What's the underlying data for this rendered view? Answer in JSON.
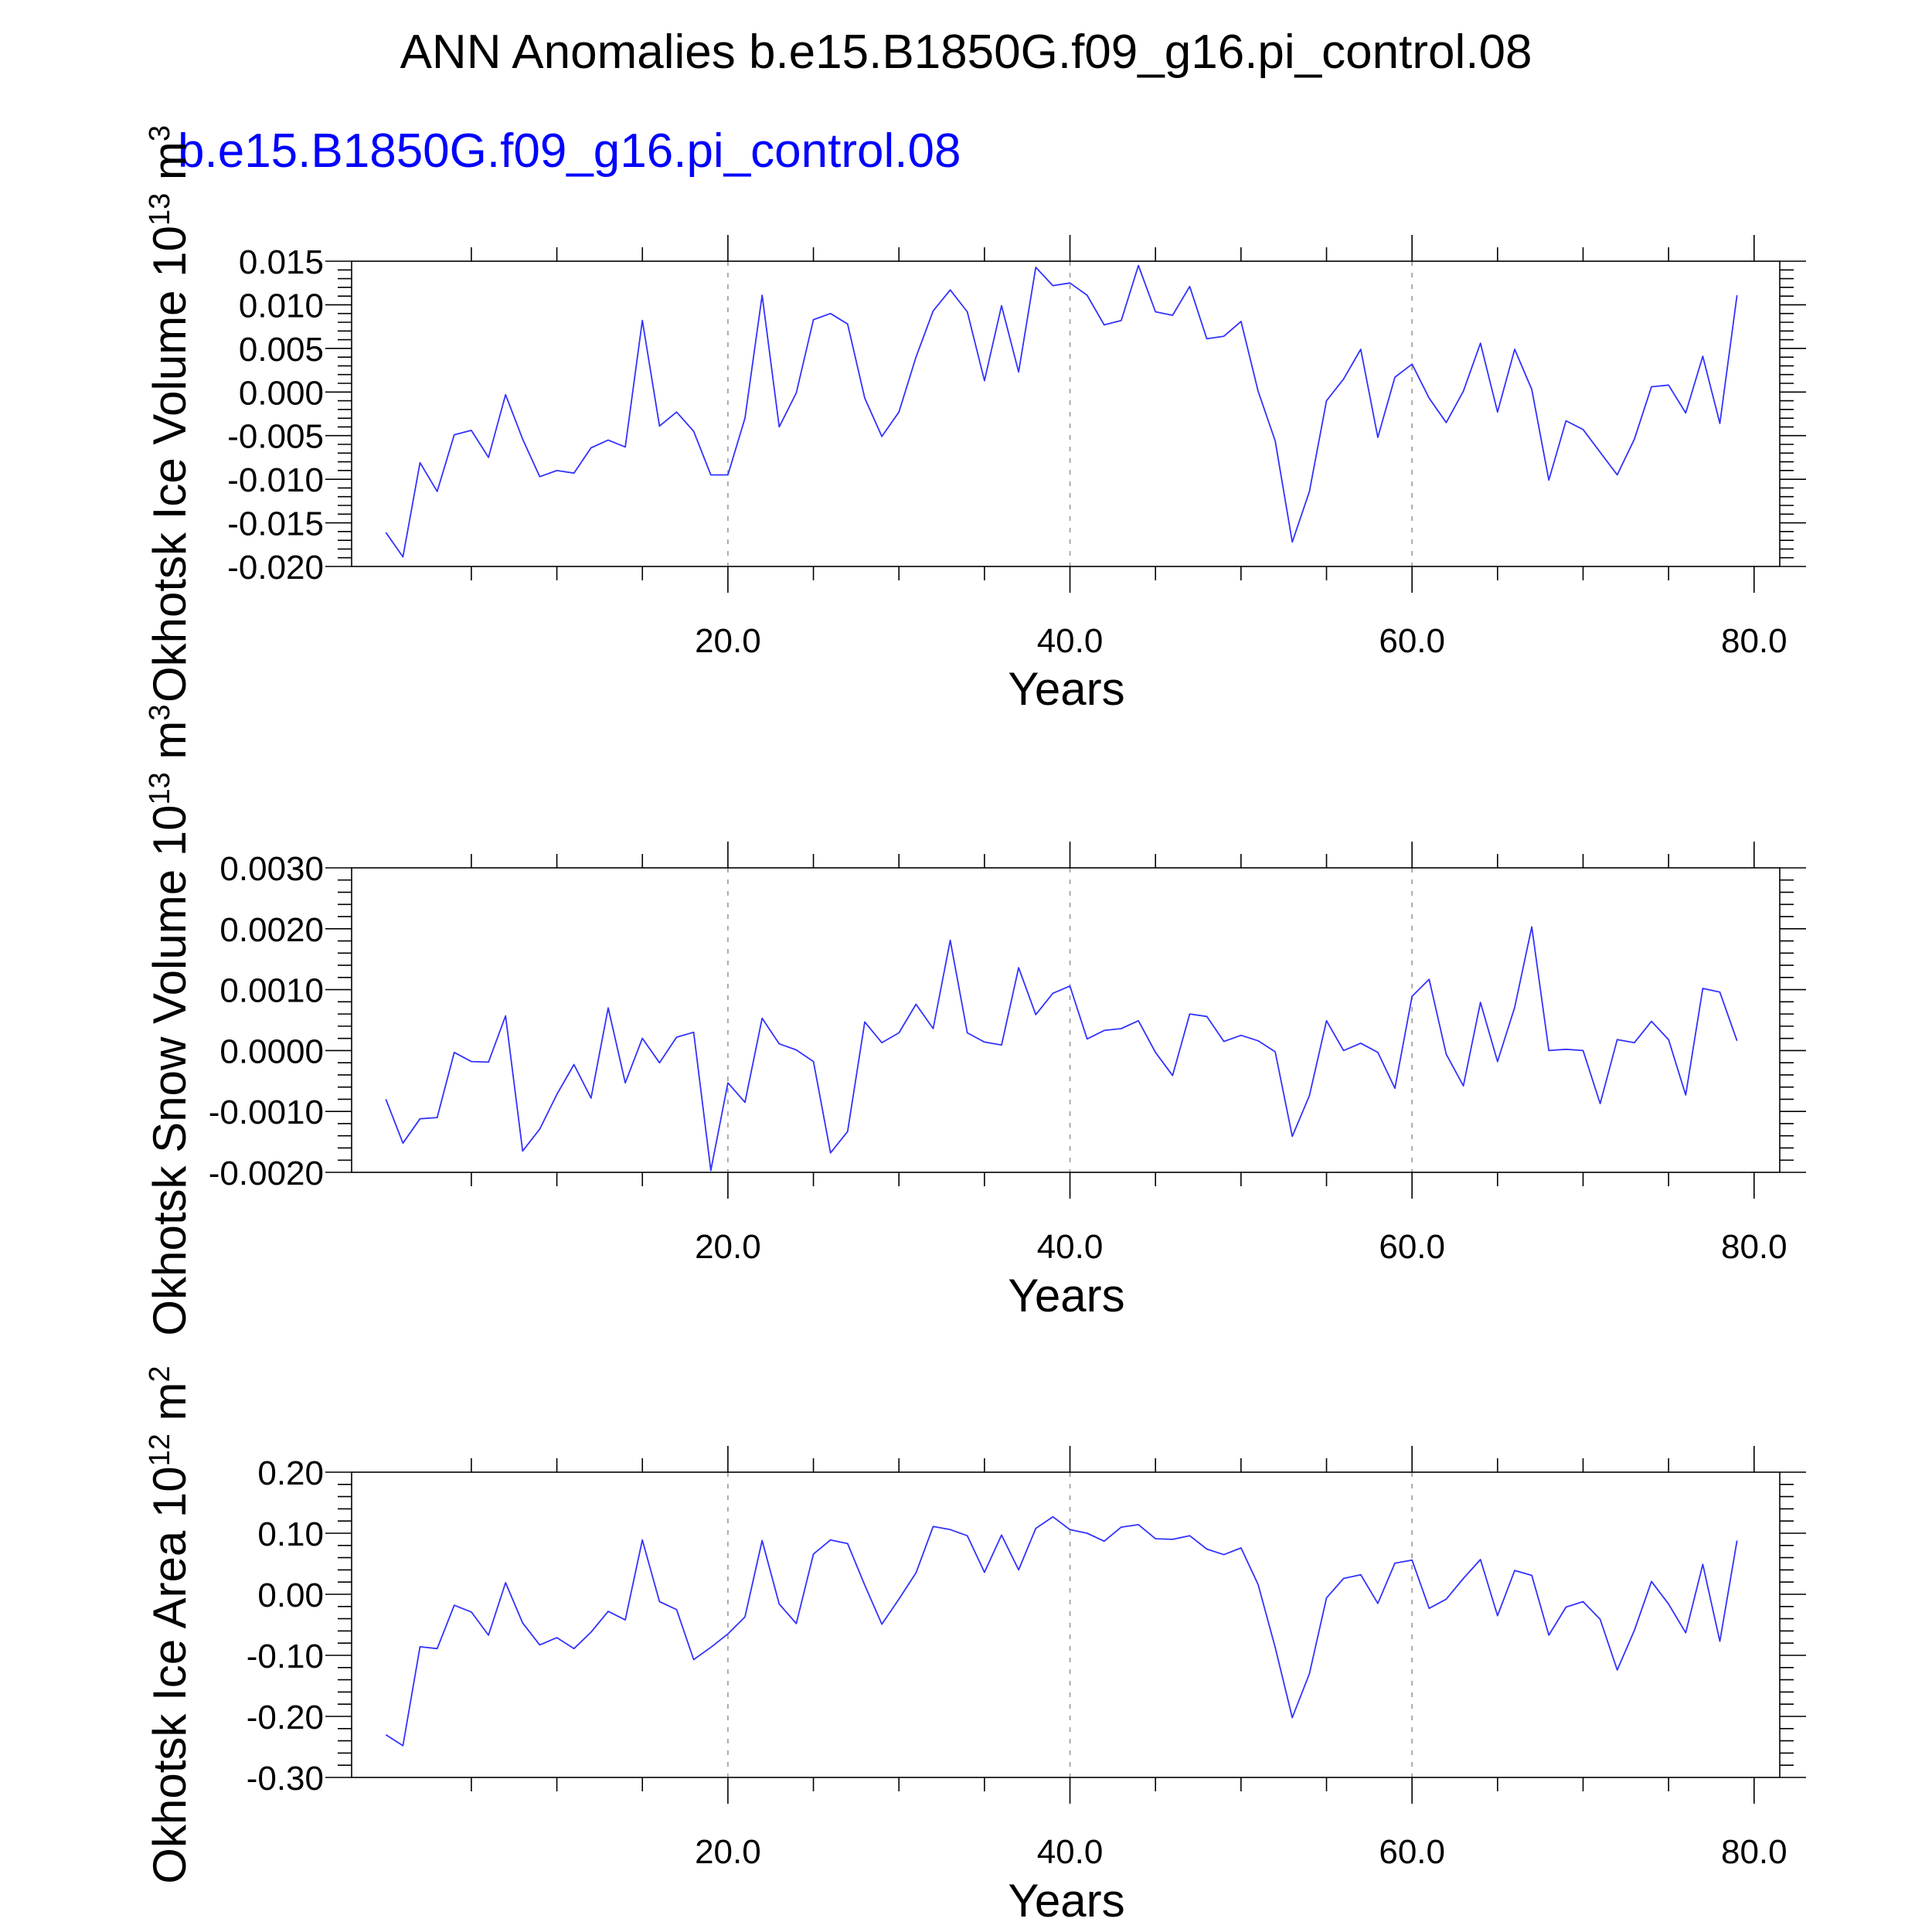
{
  "title": "ANN Anomalies b.e15.B1850G.f09_g16.pi_control.08",
  "case_label": "b.e15.B1850G.f09_g16.pi_control.08",
  "colors": {
    "series": "#3232ff",
    "case_label": "#0000ff",
    "frame": "#000000",
    "grid": "#9a9a9a"
  },
  "chart_data": [
    {
      "type": "line",
      "title": "",
      "ylabel": "Okhotsk Ice Volume 10",
      "ylabel_sup": "13",
      "ylabel_unit": " m",
      "ylabel_unit_sup": "3",
      "xlabel": "Years",
      "xlim": [
        -2,
        81.5
      ],
      "ylim": [
        -0.02,
        0.015
      ],
      "xticks": [
        20,
        40,
        60,
        80
      ],
      "xtick_labels": [
        "20.0",
        "40.0",
        "60.0",
        "80.0"
      ],
      "yticks": [
        -0.02,
        -0.015,
        -0.01,
        -0.005,
        0,
        0.005,
        0.01,
        0.015
      ],
      "ytick_labels": [
        "-0.020",
        "-0.015",
        "-0.010",
        "-0.005",
        "0.000",
        "0.005",
        "0.010",
        "0.015"
      ],
      "grid": "dashed vertical at 20, 40, 60",
      "x_start": 0,
      "x_step": 1,
      "values": [
        -0.0161,
        -0.0189,
        -0.0081,
        -0.0114,
        -0.0049,
        -0.0044,
        -0.0075,
        -0.0003,
        -0.0054,
        -0.0097,
        -0.009,
        -0.0093,
        -0.0064,
        -0.0055,
        -0.0063,
        0.0082,
        -0.0039,
        -0.0023,
        -0.0045,
        -0.0095,
        -0.0095,
        -0.003,
        0.0111,
        -0.004,
        -0.0001,
        0.0083,
        0.009,
        0.0078,
        -0.0007,
        -0.0051,
        -0.0023,
        0.004,
        0.0093,
        0.0117,
        0.0092,
        0.0013,
        0.0099,
        0.0023,
        0.0143,
        0.0122,
        0.0125,
        0.0111,
        0.0077,
        0.0082,
        0.0145,
        0.0092,
        0.0088,
        0.0121,
        0.0061,
        0.0064,
        0.0081,
        0.0001,
        -0.0056,
        -0.0172,
        -0.0114,
        -0.001,
        0.0015,
        0.0049,
        -0.0052,
        0.0017,
        0.0032,
        -0.0007,
        -0.0035,
        0.0001,
        0.0056,
        -0.0023,
        0.0049,
        0.0003,
        -0.0101,
        -0.0033,
        -0.0043,
        -0.0069,
        -0.0095,
        -0.0054,
        0.0006,
        0.0008,
        -0.0024,
        0.0041,
        -0.0036,
        0.0111
      ]
    },
    {
      "type": "line",
      "title": "",
      "ylabel": "Okhotsk Snow Volume 10",
      "ylabel_sup": "13",
      "ylabel_unit": " m",
      "ylabel_unit_sup": "3",
      "xlabel": "Years",
      "xlim": [
        -2,
        81.5
      ],
      "ylim": [
        -0.002,
        0.003
      ],
      "xticks": [
        20,
        40,
        60,
        80
      ],
      "xtick_labels": [
        "20.0",
        "40.0",
        "60.0",
        "80.0"
      ],
      "yticks": [
        -0.002,
        -0.001,
        0,
        0.001,
        0.002,
        0.003
      ],
      "ytick_labels": [
        "-0.0020",
        "-0.0010",
        "0.0000",
        "0.0010",
        "0.0020",
        "0.0030"
      ],
      "grid": "dashed vertical at 20, 40, 60",
      "x_start": 0,
      "x_step": 1,
      "values": [
        -0.0008,
        -0.00152,
        -0.00112,
        -0.0011,
        -3e-05,
        -0.00018,
        -0.00019,
        0.00057,
        -0.00165,
        -0.00129,
        -0.00072,
        -0.00023,
        -0.00078,
        0.0007,
        -0.00053,
        0.0002,
        -0.0002,
        0.00022,
        0.0003,
        -0.00197,
        -0.00053,
        -0.00085,
        0.00053,
        0.00011,
        1e-05,
        -0.00018,
        -0.00168,
        -0.00133,
        0.00047,
        0.00013,
        0.00029,
        0.00076,
        0.00036,
        0.00181,
        0.00029,
        0.00014,
        9e-05,
        0.00136,
        0.00059,
        0.00094,
        0.00106,
        0.00019,
        0.00033,
        0.00036,
        0.00049,
        -3e-05,
        -0.00041,
        0.0006,
        0.00056,
        0.00015,
        0.00025,
        0.00016,
        -2e-05,
        -0.00141,
        -0.00074,
        0.00049,
        0,
        0.00012,
        -3e-05,
        -0.00062,
        0.00089,
        0.00117,
        -6e-05,
        -0.00058,
        0.00079,
        -0.00018,
        0.00071,
        0.00203,
        0,
        2e-05,
        0,
        -0.00087,
        0.00018,
        0.00013,
        0.00048,
        0.00018,
        -0.00073,
        0.00102,
        0.00096,
        0.00016
      ]
    },
    {
      "type": "line",
      "title": "",
      "ylabel": "Okhotsk Ice Area 10",
      "ylabel_sup": "12",
      "ylabel_unit": " m",
      "ylabel_unit_sup": "2",
      "xlabel": "Years",
      "xlim": [
        -2,
        81.5
      ],
      "ylim": [
        -0.3,
        0.2
      ],
      "xticks": [
        20,
        40,
        60,
        80
      ],
      "xtick_labels": [
        "20.0",
        "40.0",
        "60.0",
        "80.0"
      ],
      "yticks": [
        -0.3,
        -0.2,
        -0.1,
        0,
        0.1,
        0.2
      ],
      "ytick_labels": [
        "-0.30",
        "-0.20",
        "-0.10",
        "0.00",
        "0.10",
        "0.20"
      ],
      "grid": "dashed vertical at 20, 40, 60",
      "x_start": 0,
      "x_step": 1,
      "values": [
        -0.23,
        -0.248,
        -0.086,
        -0.089,
        -0.018,
        -0.029,
        -0.067,
        0.019,
        -0.047,
        -0.083,
        -0.071,
        -0.089,
        -0.062,
        -0.028,
        -0.042,
        0.089,
        -0.012,
        -0.025,
        -0.107,
        -0.087,
        -0.065,
        -0.037,
        0.088,
        -0.016,
        -0.048,
        0.066,
        0.089,
        0.083,
        0.015,
        -0.049,
        -0.008,
        0.035,
        0.111,
        0.106,
        0.096,
        0.036,
        0.097,
        0.04,
        0.108,
        0.127,
        0.106,
        0.1,
        0.087,
        0.11,
        0.114,
        0.091,
        0.09,
        0.096,
        0.074,
        0.065,
        0.076,
        0.016,
        -0.087,
        -0.202,
        -0.13,
        -0.006,
        0.026,
        0.032,
        -0.015,
        0.051,
        0.056,
        -0.023,
        -0.008,
        0.026,
        0.057,
        -0.035,
        0.039,
        0.031,
        -0.067,
        -0.021,
        -0.012,
        -0.041,
        -0.124,
        -0.059,
        0.021,
        -0.016,
        -0.063,
        0.049,
        -0.077,
        0.088
      ]
    }
  ]
}
